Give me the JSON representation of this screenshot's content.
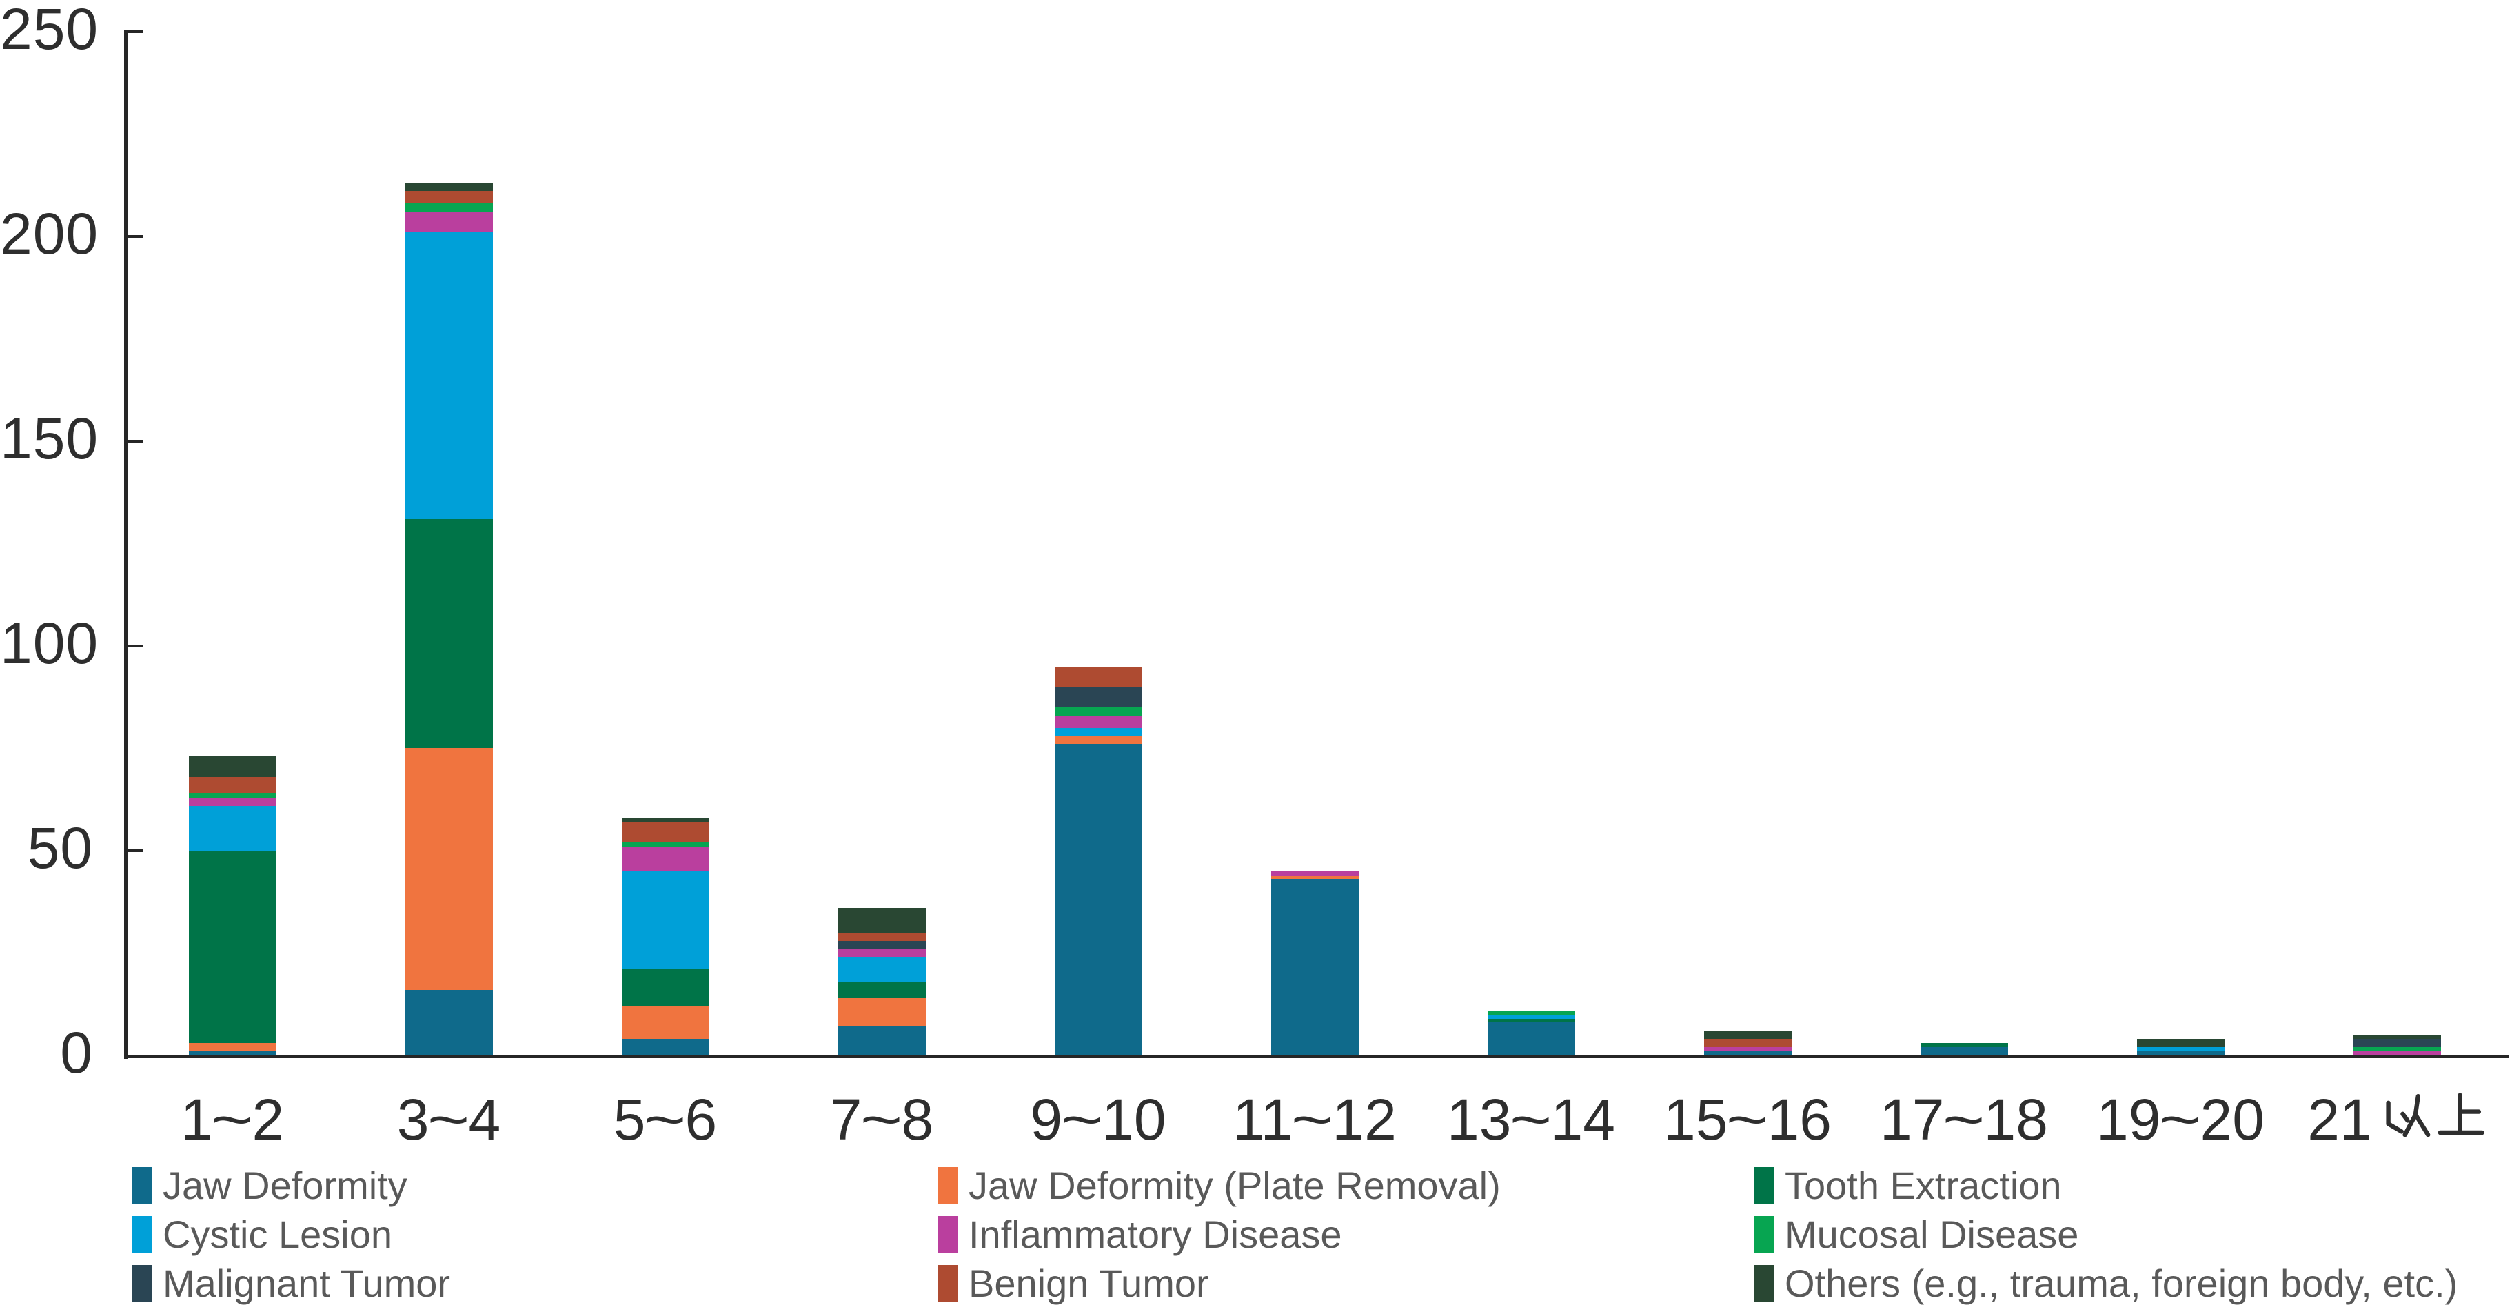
{
  "chart_data": {
    "type": "bar",
    "stacked": true,
    "title": "",
    "xlabel": "",
    "ylabel": "",
    "categories": [
      "1〜2",
      "3〜4",
      "5〜6",
      "7〜8",
      "9〜10",
      "11〜12",
      "13〜14",
      "15〜16",
      "17〜18",
      "19〜20",
      "21以上"
    ],
    "series": [
      {
        "name": "Jaw Deformity",
        "color": "#0f6a8b",
        "values": [
          1,
          16,
          4,
          7,
          76,
          43,
          8,
          1,
          2,
          1,
          0
        ]
      },
      {
        "name": "Jaw Deformity (Plate Removal)",
        "color": "#f0743f",
        "values": [
          2,
          59,
          8,
          7,
          2,
          1,
          0,
          0,
          0,
          0,
          0
        ]
      },
      {
        "name": "Tooth Extraction",
        "color": "#007448",
        "values": [
          47,
          56,
          9,
          4,
          0,
          0,
          1,
          0,
          1,
          0,
          0
        ]
      },
      {
        "name": "Cystic Lesion",
        "color": "#00a0d8",
        "values": [
          11,
          70,
          24,
          6,
          2,
          0,
          1,
          0,
          0,
          1,
          0
        ]
      },
      {
        "name": "Inflammatory Disease",
        "color": "#ba3f9e",
        "values": [
          2,
          5,
          6,
          2,
          3,
          1,
          0,
          1,
          0,
          0,
          1
        ]
      },
      {
        "name": "Mucosal Disease",
        "color": "#07a551",
        "values": [
          1,
          2,
          1,
          0,
          2,
          0,
          1,
          0,
          0,
          0,
          1
        ]
      },
      {
        "name": "Malignant Tumor",
        "color": "#2a4554",
        "values": [
          0,
          0,
          0,
          2,
          5,
          0,
          0,
          0,
          0,
          0,
          2
        ]
      },
      {
        "name": "Benign Tumor",
        "color": "#ae4b31",
        "values": [
          4,
          3,
          5,
          2,
          5,
          0,
          0,
          2,
          0,
          0,
          0
        ]
      },
      {
        "name": "Others (e.g., trauma, foreign body, etc.)",
        "color": "#294733",
        "values": [
          5,
          2,
          1,
          6,
          0,
          0,
          0,
          2,
          0,
          2,
          1
        ]
      }
    ],
    "y_axis": {
      "min": 0,
      "max": 250,
      "ticks": [
        0,
        50,
        100,
        150,
        200,
        250
      ]
    },
    "legend": {
      "position": "bottom",
      "columns": 3,
      "rows": 3
    },
    "grid": false
  },
  "colors": {
    "axis": "#262626",
    "tick_label": "#2e2e2e",
    "legend_text": "#595959",
    "background": "#ffffff"
  }
}
